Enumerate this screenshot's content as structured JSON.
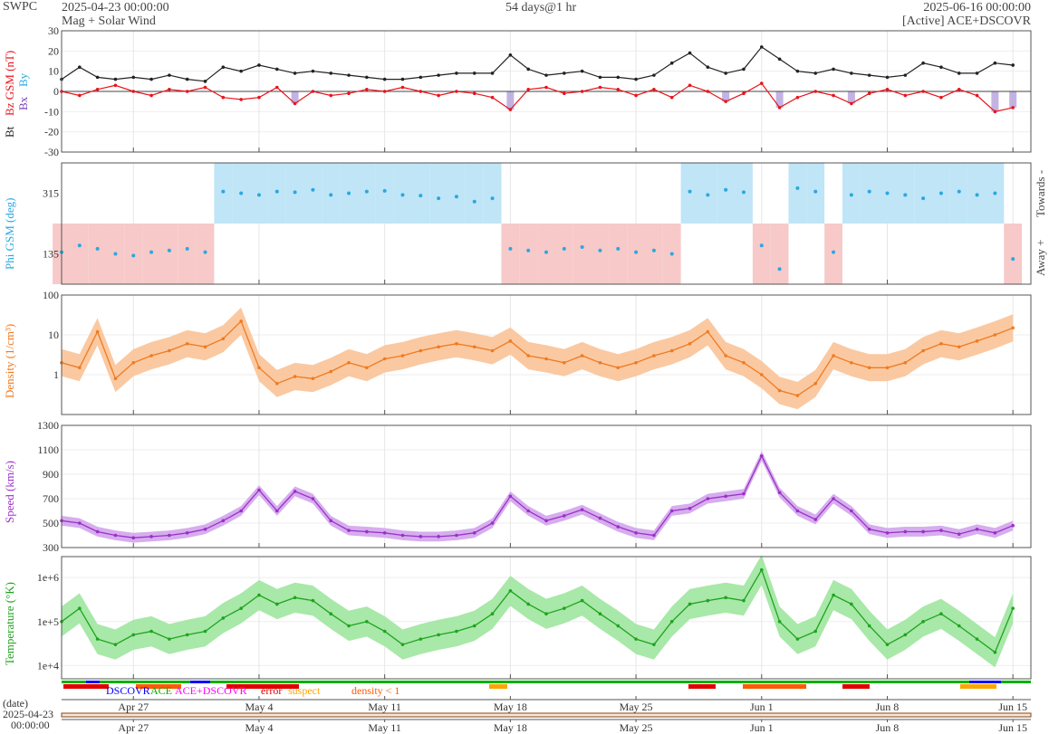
{
  "header": {
    "org": "SWPC",
    "start_date": "2025-04-23 00:00:00",
    "product": "Mag + Solar Wind",
    "span": "54 days@1 hr",
    "end_date": "2025-06-16 00:00:00",
    "source": "[Active] ACE+DSCOVR"
  },
  "colors": {
    "bt": "#222222",
    "bz": "#e8141c",
    "by": "#2aa8e0",
    "bz_neg_fill": "#b3a0dc",
    "phi": "#2aa8e0",
    "phi_towards_fill": "#bfe5f7",
    "phi_away_fill": "#f7c9c9",
    "density": "#f07a20",
    "density_fill": "#f9c397",
    "speed": "#9b30c8",
    "speed_fill": "#d2a4ec",
    "temperature": "#1fa31f",
    "temperature_fill": "#9ee59e",
    "dscovr": "#0000ff",
    "ace": "#00b000",
    "ace_dscovr": "#ff00ff",
    "error": "#e00000",
    "suspect": "#ffa500",
    "density_lt_1": "#ff5a00"
  },
  "time_axis": {
    "start": "2025-04-23",
    "end": "2025-06-16",
    "tick_labels": [
      "Apr 27",
      "May 4",
      "May 11",
      "May 18",
      "May 25",
      "Jun 1",
      "Jun 8",
      "Jun 15"
    ],
    "tick_dates": [
      "2025-04-27",
      "2025-05-04",
      "2025-05-11",
      "2025-05-18",
      "2025-05-25",
      "2025-06-01",
      "2025-06-08",
      "2025-06-15"
    ]
  },
  "legend": {
    "dscovr": "DSCOVR",
    "ace": "ACE",
    "ace_dscovr": "ACE+DSCOVR",
    "error": "error",
    "suspect": "suspect",
    "density_lt_1": "density < 1"
  },
  "overview": {
    "date_label": "(date)",
    "date_value": "2025-04-23",
    "time_value": "00:00:00"
  },
  "chart_data": [
    {
      "type": "line",
      "panel": "mag",
      "ylabel_bt": "Bt",
      "ylabel_bz": "Bz GSM (nT)",
      "ylabel_by": "By",
      "ylabel_bx": "Bx",
      "ylim": [
        -30,
        30
      ],
      "yticks": [
        -30,
        -20,
        -10,
        0,
        10,
        20,
        30
      ],
      "x": [
        "2025-04-23",
        "2025-04-24",
        "2025-04-25",
        "2025-04-26",
        "2025-04-27",
        "2025-04-28",
        "2025-04-29",
        "2025-04-30",
        "2025-05-01",
        "2025-05-02",
        "2025-05-03",
        "2025-05-04",
        "2025-05-05",
        "2025-05-06",
        "2025-05-07",
        "2025-05-08",
        "2025-05-09",
        "2025-05-10",
        "2025-05-11",
        "2025-05-12",
        "2025-05-13",
        "2025-05-14",
        "2025-05-15",
        "2025-05-16",
        "2025-05-17",
        "2025-05-18",
        "2025-05-19",
        "2025-05-20",
        "2025-05-21",
        "2025-05-22",
        "2025-05-23",
        "2025-05-24",
        "2025-05-25",
        "2025-05-26",
        "2025-05-27",
        "2025-05-28",
        "2025-05-29",
        "2025-05-30",
        "2025-05-31",
        "2025-06-01",
        "2025-06-02",
        "2025-06-03",
        "2025-06-04",
        "2025-06-05",
        "2025-06-06",
        "2025-06-07",
        "2025-06-08",
        "2025-06-09",
        "2025-06-10",
        "2025-06-11",
        "2025-06-12",
        "2025-06-13",
        "2025-06-14",
        "2025-06-15"
      ],
      "series": [
        {
          "key": "bt",
          "values": [
            6,
            12,
            7,
            6,
            7,
            6,
            8,
            6,
            5,
            12,
            10,
            13,
            11,
            9,
            10,
            9,
            8,
            7,
            6,
            6,
            7,
            8,
            9,
            9,
            9,
            18,
            11,
            8,
            9,
            10,
            7,
            7,
            6,
            8,
            14,
            19,
            12,
            9,
            11,
            22,
            16,
            10,
            9,
            11,
            9,
            8,
            7,
            8,
            14,
            12,
            9,
            9,
            14,
            13
          ]
        },
        {
          "key": "bz",
          "values": [
            0,
            -2,
            1,
            3,
            0,
            -2,
            1,
            0,
            2,
            -3,
            -4,
            -3,
            2,
            -6,
            0,
            -2,
            -1,
            1,
            0,
            2,
            0,
            -2,
            0,
            -1,
            -3,
            -9,
            1,
            2,
            -1,
            0,
            2,
            1,
            -2,
            1,
            -3,
            3,
            0,
            -5,
            -1,
            4,
            -8,
            -3,
            0,
            -2,
            -6,
            -1,
            1,
            -2,
            0,
            -3,
            1,
            -2,
            -10,
            -8
          ]
        }
      ]
    },
    {
      "type": "scatter",
      "panel": "phi",
      "ylabel": "Phi GSM (deg)",
      "right_labels": [
        "Towards -",
        "Away +"
      ],
      "yticks": [
        135,
        315
      ],
      "ylim": [
        45,
        405
      ],
      "x": [
        "2025-04-23",
        "2025-04-24",
        "2025-04-25",
        "2025-04-26",
        "2025-04-27",
        "2025-04-28",
        "2025-04-29",
        "2025-04-30",
        "2025-05-01",
        "2025-05-02",
        "2025-05-03",
        "2025-05-04",
        "2025-05-05",
        "2025-05-06",
        "2025-05-07",
        "2025-05-08",
        "2025-05-09",
        "2025-05-10",
        "2025-05-11",
        "2025-05-12",
        "2025-05-13",
        "2025-05-14",
        "2025-05-15",
        "2025-05-16",
        "2025-05-17",
        "2025-05-18",
        "2025-05-19",
        "2025-05-20",
        "2025-05-21",
        "2025-05-22",
        "2025-05-23",
        "2025-05-24",
        "2025-05-25",
        "2025-05-26",
        "2025-05-27",
        "2025-05-28",
        "2025-05-29",
        "2025-05-30",
        "2025-05-31",
        "2025-06-01",
        "2025-06-02",
        "2025-06-03",
        "2025-06-04",
        "2025-06-05",
        "2025-06-06",
        "2025-06-07",
        "2025-06-08",
        "2025-06-09",
        "2025-06-10",
        "2025-06-11",
        "2025-06-12",
        "2025-06-13",
        "2025-06-14",
        "2025-06-15"
      ],
      "values": [
        140,
        160,
        150,
        135,
        130,
        140,
        145,
        150,
        140,
        320,
        315,
        310,
        320,
        318,
        325,
        310,
        315,
        320,
        322,
        310,
        308,
        300,
        305,
        290,
        300,
        150,
        145,
        140,
        150,
        155,
        145,
        150,
        140,
        145,
        135,
        320,
        310,
        325,
        318,
        160,
        90,
        330,
        320,
        140,
        310,
        320,
        315,
        310,
        300,
        315,
        320,
        310,
        315,
        120
      ]
    },
    {
      "type": "area",
      "panel": "density",
      "ylabel": "Density (1/cm³)",
      "scale": "log",
      "ylim": [
        0.1,
        100
      ],
      "yticks": [
        1,
        10,
        100
      ],
      "ytick_labels": [
        "1",
        "10",
        "100"
      ],
      "x": [
        "2025-04-23",
        "2025-04-24",
        "2025-04-25",
        "2025-04-26",
        "2025-04-27",
        "2025-04-28",
        "2025-04-29",
        "2025-04-30",
        "2025-05-01",
        "2025-05-02",
        "2025-05-03",
        "2025-05-04",
        "2025-05-05",
        "2025-05-06",
        "2025-05-07",
        "2025-05-08",
        "2025-05-09",
        "2025-05-10",
        "2025-05-11",
        "2025-05-12",
        "2025-05-13",
        "2025-05-14",
        "2025-05-15",
        "2025-05-16",
        "2025-05-17",
        "2025-05-18",
        "2025-05-19",
        "2025-05-20",
        "2025-05-21",
        "2025-05-22",
        "2025-05-23",
        "2025-05-24",
        "2025-05-25",
        "2025-05-26",
        "2025-05-27",
        "2025-05-28",
        "2025-05-29",
        "2025-05-30",
        "2025-05-31",
        "2025-06-01",
        "2025-06-02",
        "2025-06-03",
        "2025-06-04",
        "2025-06-05",
        "2025-06-06",
        "2025-06-07",
        "2025-06-08",
        "2025-06-09",
        "2025-06-10",
        "2025-06-11",
        "2025-06-12",
        "2025-06-13",
        "2025-06-14",
        "2025-06-15"
      ],
      "values": [
        2,
        1.5,
        12,
        0.8,
        2,
        3,
        4,
        6,
        5,
        8,
        22,
        1.5,
        0.6,
        0.9,
        0.8,
        1.2,
        2,
        1.5,
        2.5,
        3,
        4,
        5,
        6,
        5,
        4,
        7,
        3,
        2.5,
        2,
        3,
        2,
        1.5,
        2,
        3,
        4,
        6,
        12,
        3,
        2,
        1,
        0.4,
        0.3,
        0.6,
        3,
        2,
        1.5,
        1.5,
        2,
        4,
        6,
        5,
        7,
        10,
        15
      ]
    },
    {
      "type": "area",
      "panel": "speed",
      "ylabel": "Speed (km/s)",
      "ylim": [
        300,
        1300
      ],
      "yticks": [
        300,
        500,
        700,
        900,
        1100,
        1300
      ],
      "x": [
        "2025-04-23",
        "2025-04-24",
        "2025-04-25",
        "2025-04-26",
        "2025-04-27",
        "2025-04-28",
        "2025-04-29",
        "2025-04-30",
        "2025-05-01",
        "2025-05-02",
        "2025-05-03",
        "2025-05-04",
        "2025-05-05",
        "2025-05-06",
        "2025-05-07",
        "2025-05-08",
        "2025-05-09",
        "2025-05-10",
        "2025-05-11",
        "2025-05-12",
        "2025-05-13",
        "2025-05-14",
        "2025-05-15",
        "2025-05-16",
        "2025-05-17",
        "2025-05-18",
        "2025-05-19",
        "2025-05-20",
        "2025-05-21",
        "2025-05-22",
        "2025-05-23",
        "2025-05-24",
        "2025-05-25",
        "2025-05-26",
        "2025-05-27",
        "2025-05-28",
        "2025-05-29",
        "2025-05-30",
        "2025-05-31",
        "2025-06-01",
        "2025-06-02",
        "2025-06-03",
        "2025-06-04",
        "2025-06-05",
        "2025-06-06",
        "2025-06-07",
        "2025-06-08",
        "2025-06-09",
        "2025-06-10",
        "2025-06-11",
        "2025-06-12",
        "2025-06-13",
        "2025-06-14",
        "2025-06-15"
      ],
      "values": [
        520,
        500,
        430,
        400,
        380,
        390,
        400,
        420,
        450,
        520,
        600,
        770,
        600,
        760,
        700,
        520,
        440,
        430,
        420,
        400,
        390,
        390,
        400,
        420,
        500,
        720,
        600,
        520,
        560,
        610,
        540,
        470,
        420,
        400,
        600,
        620,
        700,
        720,
        740,
        1050,
        750,
        600,
        530,
        700,
        600,
        450,
        420,
        430,
        430,
        440,
        410,
        450,
        420,
        480
      ]
    },
    {
      "type": "area",
      "panel": "temperature",
      "ylabel": "Temperature (°K)",
      "scale": "log",
      "ylim": [
        5000,
        3000000
      ],
      "yticks": [
        10000,
        100000,
        1000000
      ],
      "ytick_labels": [
        "1e+4",
        "1e+5",
        "1e+6"
      ],
      "x": [
        "2025-04-23",
        "2025-04-24",
        "2025-04-25",
        "2025-04-26",
        "2025-04-27",
        "2025-04-28",
        "2025-04-29",
        "2025-04-30",
        "2025-05-01",
        "2025-05-02",
        "2025-05-03",
        "2025-05-04",
        "2025-05-05",
        "2025-05-06",
        "2025-05-07",
        "2025-05-08",
        "2025-05-09",
        "2025-05-10",
        "2025-05-11",
        "2025-05-12",
        "2025-05-13",
        "2025-05-14",
        "2025-05-15",
        "2025-05-16",
        "2025-05-17",
        "2025-05-18",
        "2025-05-19",
        "2025-05-20",
        "2025-05-21",
        "2025-05-22",
        "2025-05-23",
        "2025-05-24",
        "2025-05-25",
        "2025-05-26",
        "2025-05-27",
        "2025-05-28",
        "2025-05-29",
        "2025-05-30",
        "2025-05-31",
        "2025-06-01",
        "2025-06-02",
        "2025-06-03",
        "2025-06-04",
        "2025-06-05",
        "2025-06-06",
        "2025-06-07",
        "2025-06-08",
        "2025-06-09",
        "2025-06-10",
        "2025-06-11",
        "2025-06-12",
        "2025-06-13",
        "2025-06-14",
        "2025-06-15"
      ],
      "values": [
        100000,
        200000,
        40000,
        30000,
        50000,
        60000,
        40000,
        50000,
        60000,
        120000,
        200000,
        400000,
        250000,
        350000,
        300000,
        150000,
        80000,
        100000,
        60000,
        30000,
        40000,
        50000,
        60000,
        80000,
        150000,
        500000,
        250000,
        150000,
        200000,
        300000,
        150000,
        80000,
        40000,
        30000,
        100000,
        250000,
        300000,
        350000,
        300000,
        1500000,
        100000,
        40000,
        60000,
        400000,
        250000,
        80000,
        30000,
        50000,
        100000,
        150000,
        80000,
        40000,
        20000,
        200000
      ]
    }
  ]
}
